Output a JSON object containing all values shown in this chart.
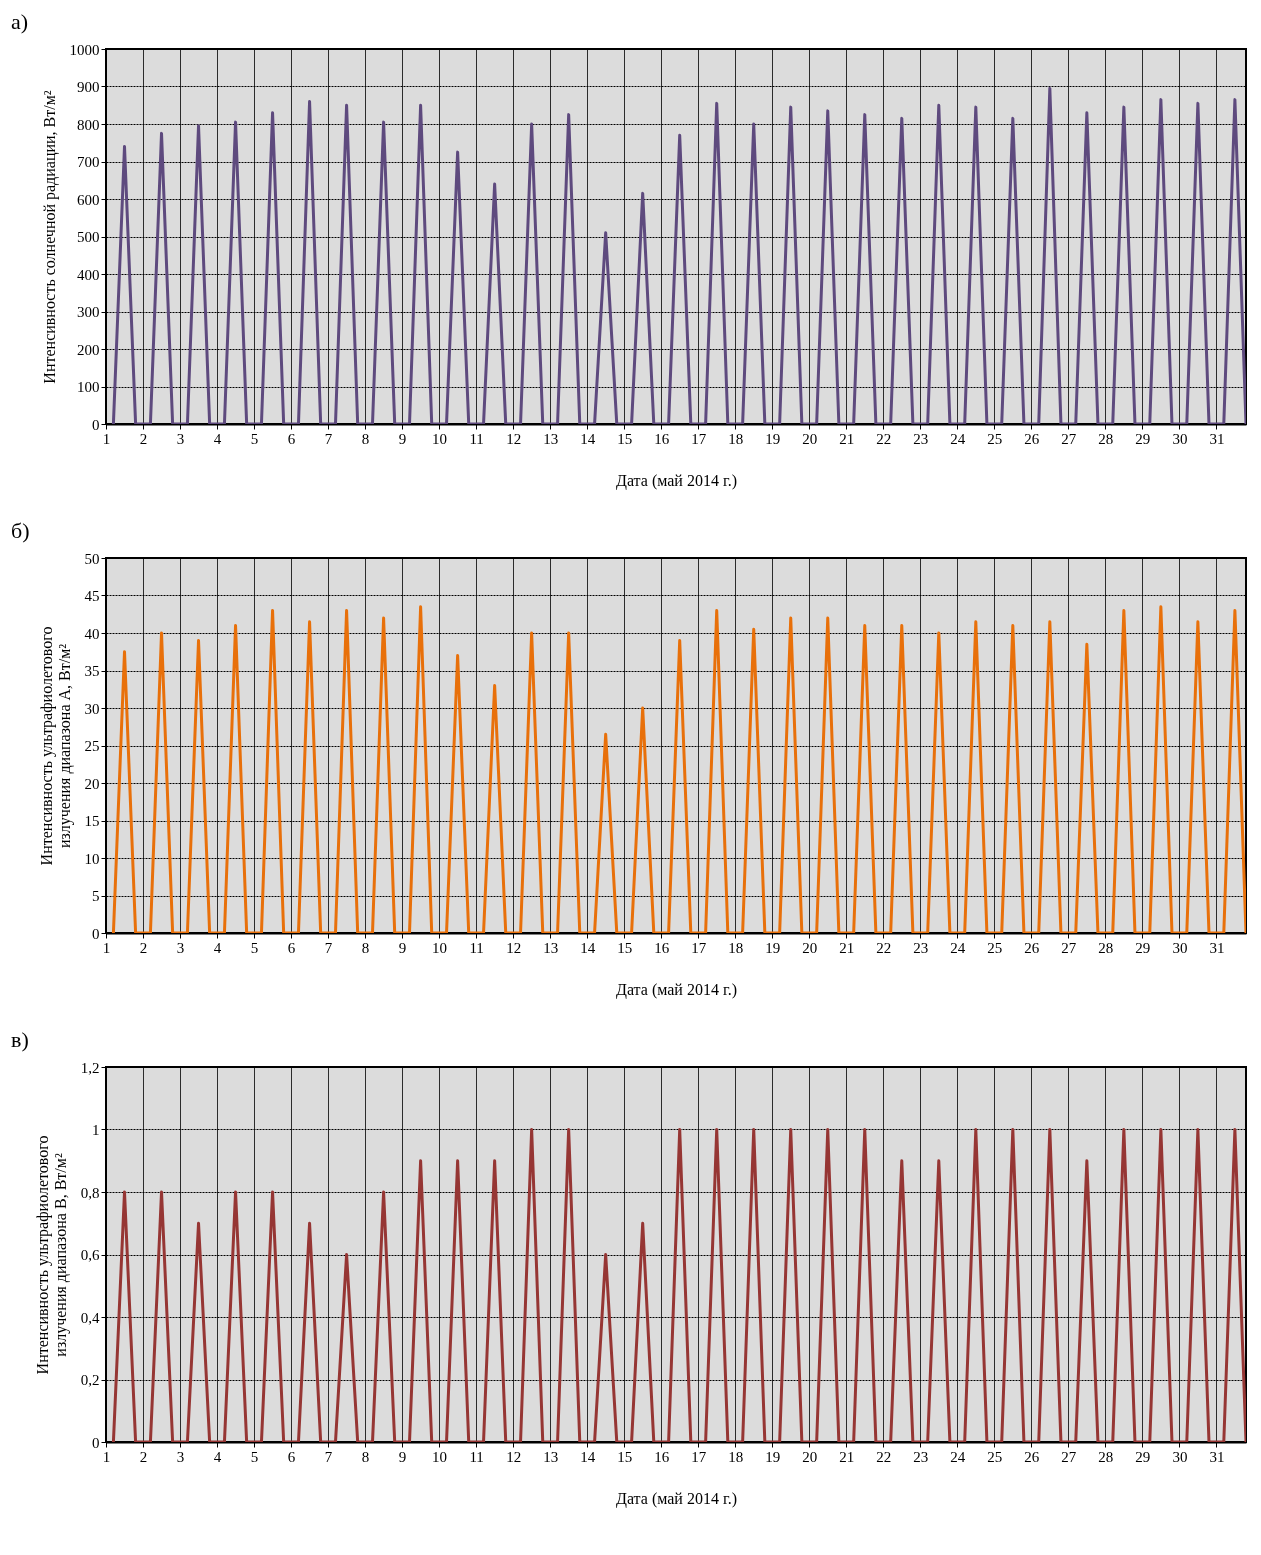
{
  "chart_data": [
    {
      "type": "line",
      "title": "а)",
      "xlabel": "Дата (май 2014 г.)",
      "ylabel": "Интенсивность солнечной радиации, Вт/м²",
      "color": "#5e4a7e",
      "grid": true,
      "xlim": [
        1,
        31.8
      ],
      "xticks": [
        1,
        2,
        3,
        4,
        5,
        6,
        7,
        8,
        9,
        10,
        11,
        12,
        13,
        14,
        15,
        16,
        17,
        18,
        19,
        20,
        21,
        22,
        23,
        24,
        25,
        26,
        27,
        28,
        29,
        30,
        31
      ],
      "ylim": [
        0,
        1000
      ],
      "yticks": [
        0,
        100,
        200,
        300,
        400,
        500,
        600,
        700,
        800,
        900,
        1000
      ],
      "x": [
        1.2,
        1.5,
        1.8,
        2.2,
        2.5,
        2.8,
        3.2,
        3.5,
        3.8,
        4.2,
        4.5,
        4.8,
        5.2,
        5.5,
        5.8,
        6.2,
        6.5,
        6.8,
        7.2,
        7.5,
        7.8,
        8.2,
        8.5,
        8.8,
        9.2,
        9.5,
        9.8,
        10.2,
        10.5,
        10.8,
        11.2,
        11.5,
        11.8,
        12.2,
        12.5,
        12.8,
        13.2,
        13.5,
        13.8,
        14.2,
        14.5,
        14.8,
        15.2,
        15.5,
        15.8,
        16.2,
        16.5,
        16.8,
        17.2,
        17.5,
        17.8,
        18.2,
        18.5,
        18.8,
        19.2,
        19.5,
        19.8,
        20.2,
        20.5,
        20.8,
        21.2,
        21.5,
        21.8,
        22.2,
        22.5,
        22.8,
        23.2,
        23.5,
        23.8,
        24.2,
        24.5,
        24.8,
        25.2,
        25.5,
        25.8,
        26.2,
        26.5,
        26.8,
        27.2,
        27.5,
        27.8,
        28.2,
        28.5,
        28.8,
        29.2,
        29.5,
        29.8,
        30.2,
        30.5,
        30.8,
        31.2,
        31.5,
        31.8
      ],
      "values": [
        0,
        740,
        0,
        0,
        775,
        0,
        0,
        795,
        0,
        0,
        805,
        0,
        0,
        830,
        0,
        0,
        860,
        0,
        0,
        850,
        0,
        0,
        805,
        0,
        0,
        850,
        0,
        0,
        725,
        0,
        0,
        640,
        0,
        0,
        800,
        0,
        0,
        825,
        0,
        0,
        510,
        0,
        0,
        615,
        0,
        0,
        770,
        0,
        0,
        855,
        0,
        0,
        800,
        0,
        0,
        845,
        0,
        0,
        835,
        0,
        0,
        825,
        0,
        0,
        815,
        0,
        0,
        850,
        0,
        0,
        845,
        0,
        0,
        815,
        0,
        0,
        895,
        0,
        0,
        830,
        0,
        0,
        845,
        0,
        0,
        865,
        0,
        0,
        855,
        0,
        0,
        865,
        0
      ]
    },
    {
      "type": "line",
      "title": "б)",
      "xlabel": "Дата (май 2014 г.)",
      "ylabel": "Интенсивность ультрафиолетового\nизлучения диапазона А, Вт/м²",
      "color": "#e8700a",
      "grid": true,
      "xlim": [
        1,
        31.8
      ],
      "xticks": [
        1,
        2,
        3,
        4,
        5,
        6,
        7,
        8,
        9,
        10,
        11,
        12,
        13,
        14,
        15,
        16,
        17,
        18,
        19,
        20,
        21,
        22,
        23,
        24,
        25,
        26,
        27,
        28,
        29,
        30,
        31
      ],
      "ylim": [
        0,
        50
      ],
      "yticks": [
        0,
        5,
        10,
        15,
        20,
        25,
        30,
        35,
        40,
        45,
        50
      ],
      "x": [
        1.2,
        1.5,
        1.8,
        2.2,
        2.5,
        2.8,
        3.2,
        3.5,
        3.8,
        4.2,
        4.5,
        4.8,
        5.2,
        5.5,
        5.8,
        6.2,
        6.5,
        6.8,
        7.2,
        7.5,
        7.8,
        8.2,
        8.5,
        8.8,
        9.2,
        9.5,
        9.8,
        10.2,
        10.5,
        10.8,
        11.2,
        11.5,
        11.8,
        12.2,
        12.5,
        12.8,
        13.2,
        13.5,
        13.8,
        14.2,
        14.5,
        14.8,
        15.2,
        15.5,
        15.8,
        16.2,
        16.5,
        16.8,
        17.2,
        17.5,
        17.8,
        18.2,
        18.5,
        18.8,
        19.2,
        19.5,
        19.8,
        20.2,
        20.5,
        20.8,
        21.2,
        21.5,
        21.8,
        22.2,
        22.5,
        22.8,
        23.2,
        23.5,
        23.8,
        24.2,
        24.5,
        24.8,
        25.2,
        25.5,
        25.8,
        26.2,
        26.5,
        26.8,
        27.2,
        27.5,
        27.8,
        28.2,
        28.5,
        28.8,
        29.2,
        29.5,
        29.8,
        30.2,
        30.5,
        30.8,
        31.2,
        31.5,
        31.8
      ],
      "values": [
        0,
        37.5,
        0,
        0,
        40,
        0,
        0,
        39,
        0,
        0,
        41,
        0,
        0,
        43,
        0,
        0,
        41.5,
        0,
        0,
        43,
        0,
        0,
        42,
        0,
        0,
        43.5,
        0,
        0,
        37,
        0,
        0,
        33,
        0,
        0,
        40,
        0,
        0,
        40,
        0,
        0,
        26.5,
        0,
        0,
        30,
        0,
        0,
        39,
        0,
        0,
        43,
        0,
        0,
        40.5,
        0,
        0,
        42,
        0,
        0,
        42,
        0,
        0,
        41,
        0,
        0,
        41,
        0,
        0,
        40,
        0,
        0,
        41.5,
        0,
        0,
        41,
        0,
        0,
        41.5,
        0,
        0,
        38.5,
        0,
        0,
        43,
        0,
        0,
        43.5,
        0,
        0,
        41.5,
        0,
        0,
        43,
        0
      ]
    },
    {
      "type": "line",
      "title": "в)",
      "xlabel": "Дата (май 2014 г.)",
      "ylabel": "Интенсивность ультрафиолетового\nизлучения диапазона В, Вт/м²",
      "color": "#963634",
      "grid": true,
      "xlim": [
        1,
        31.8
      ],
      "xticks": [
        1,
        2,
        3,
        4,
        5,
        6,
        7,
        8,
        9,
        10,
        11,
        12,
        13,
        14,
        15,
        16,
        17,
        18,
        19,
        20,
        21,
        22,
        23,
        24,
        25,
        26,
        27,
        28,
        29,
        30,
        31
      ],
      "ylim": [
        0,
        1.2
      ],
      "yticks": [
        0,
        {
          "value": 0.2,
          "label": "0,2"
        },
        {
          "value": 0.4,
          "label": "0,4"
        },
        {
          "value": 0.6,
          "label": "0,6"
        },
        {
          "value": 0.8,
          "label": "0,8"
        },
        1,
        {
          "value": 1.2,
          "label": "1,2"
        }
      ],
      "x": [
        1.2,
        1.5,
        1.8,
        2.2,
        2.5,
        2.8,
        3.2,
        3.5,
        3.8,
        4.2,
        4.5,
        4.8,
        5.2,
        5.5,
        5.8,
        6.2,
        6.5,
        6.8,
        7.2,
        7.5,
        7.8,
        8.2,
        8.5,
        8.8,
        9.2,
        9.5,
        9.8,
        10.2,
        10.5,
        10.8,
        11.2,
        11.5,
        11.8,
        12.2,
        12.5,
        12.8,
        13.2,
        13.5,
        13.8,
        14.2,
        14.5,
        14.8,
        15.2,
        15.5,
        15.8,
        16.2,
        16.5,
        16.8,
        17.2,
        17.5,
        17.8,
        18.2,
        18.5,
        18.8,
        19.2,
        19.5,
        19.8,
        20.2,
        20.5,
        20.8,
        21.2,
        21.5,
        21.8,
        22.2,
        22.5,
        22.8,
        23.2,
        23.5,
        23.8,
        24.2,
        24.5,
        24.8,
        25.2,
        25.5,
        25.8,
        26.2,
        26.5,
        26.8,
        27.2,
        27.5,
        27.8,
        28.2,
        28.5,
        28.8,
        29.2,
        29.5,
        29.8,
        30.2,
        30.5,
        30.8,
        31.2,
        31.5,
        31.8
      ],
      "values": [
        0,
        0.8,
        0,
        0,
        0.8,
        0,
        0,
        0.7,
        0,
        0,
        0.8,
        0,
        0,
        0.8,
        0,
        0,
        0.7,
        0,
        0,
        0.6,
        0,
        0,
        0.8,
        0,
        0,
        0.9,
        0,
        0,
        0.9,
        0,
        0,
        0.9,
        0,
        0,
        1,
        0,
        0,
        1,
        0,
        0,
        0.6,
        0,
        0,
        0.7,
        0,
        0,
        1,
        0,
        0,
        1,
        0,
        0,
        1,
        0,
        0,
        1,
        0,
        0,
        1,
        0,
        0,
        1,
        0,
        0,
        0.9,
        0,
        0,
        0.9,
        0,
        0,
        1,
        0,
        0,
        1,
        0,
        0,
        1,
        0,
        0,
        0.9,
        0,
        0,
        1,
        0,
        0,
        1,
        0,
        0,
        1,
        0,
        0,
        1,
        0
      ]
    }
  ]
}
